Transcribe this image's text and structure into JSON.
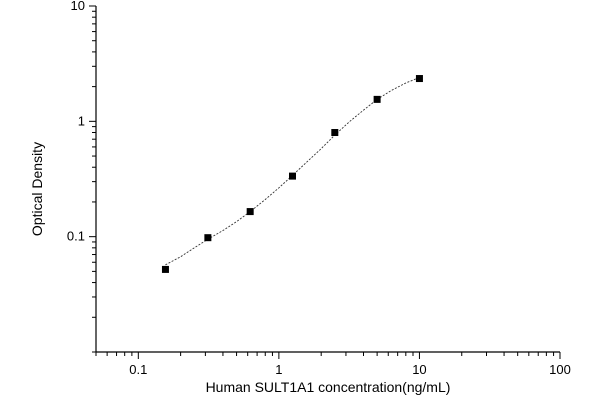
{
  "chart_data": {
    "type": "scatter",
    "title": "",
    "xlabel": "Human SULT1A1 concentration(ng/mL)",
    "ylabel": "Optical Density",
    "x_scale": "log",
    "y_scale": "log",
    "xlim": [
      0.05,
      100
    ],
    "ylim": [
      0.01,
      10
    ],
    "x_ticks": [
      0.1,
      1,
      10,
      100
    ],
    "x_tick_labels": [
      "0.1",
      "1",
      "10",
      "100"
    ],
    "y_ticks": [
      0.1,
      1,
      10
    ],
    "y_tick_labels": [
      "0.1",
      "1",
      "10"
    ],
    "grid": false,
    "legend": "none",
    "series": [
      {
        "x": [
          0.156,
          0.3125,
          0.625,
          1.25,
          2.5,
          5,
          10
        ],
        "y": [
          0.052,
          0.098,
          0.165,
          0.335,
          0.8,
          1.55,
          2.35
        ]
      }
    ],
    "fit_curve": {
      "x": [
        0.156,
        0.2,
        0.25,
        0.3125,
        0.4,
        0.5,
        0.625,
        0.8,
        1,
        1.25,
        1.6,
        2,
        2.5,
        3.2,
        4,
        5,
        6.3,
        8,
        10
      ],
      "y": [
        0.057,
        0.067,
        0.08,
        0.095,
        0.113,
        0.135,
        0.165,
        0.21,
        0.265,
        0.34,
        0.45,
        0.58,
        0.76,
        1.0,
        1.25,
        1.55,
        1.85,
        2.15,
        2.4
      ]
    }
  }
}
